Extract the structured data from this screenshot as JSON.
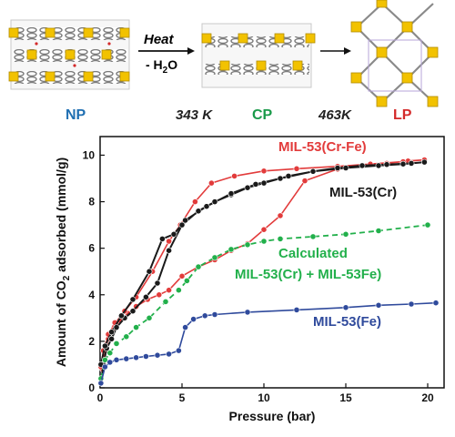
{
  "scheme": {
    "step1": {
      "top": "Heat",
      "bottom": "- H",
      "bottom_sub": "2",
      "bottom_tail": "O"
    },
    "phases": [
      {
        "label": "NP",
        "color": "#1f6fb2"
      },
      {
        "label": "343 K",
        "color": "#222222"
      },
      {
        "label": "CP",
        "color": "#1a9a4a"
      },
      {
        "label": "463K",
        "color": "#222222"
      },
      {
        "label": "LP",
        "color": "#d42a2a"
      }
    ]
  },
  "chart_data": {
    "type": "line",
    "title": "",
    "xlabel": "Pressure (bar)",
    "ylabel_parts": {
      "pre": "Amount of CO",
      "sub": "2",
      "post": " adsorbed (mmol/g)"
    },
    "xlim": [
      0,
      21
    ],
    "ylim": [
      0,
      10.8
    ],
    "xticks": [
      0,
      5,
      10,
      15,
      20
    ],
    "yticks": [
      0,
      2,
      4,
      6,
      8,
      10
    ],
    "grid": false,
    "legend": "inline labels",
    "series": [
      {
        "name": "MIL-53(Cr-Fe)",
        "color": "#e23b3b",
        "dashed": false,
        "line_width": 1.6,
        "points": [
          [
            0.05,
            0.2
          ],
          [
            0.15,
            0.8
          ],
          [
            0.3,
            1.6
          ],
          [
            0.5,
            2.1
          ],
          [
            0.8,
            2.5
          ],
          [
            1.2,
            2.9
          ],
          [
            1.7,
            3.2
          ],
          [
            2.2,
            3.5
          ],
          [
            2.9,
            3.8
          ],
          [
            3.6,
            4.0
          ],
          [
            4.2,
            4.2
          ],
          [
            5.0,
            4.8
          ],
          [
            6.0,
            5.2
          ],
          [
            7.0,
            5.5
          ],
          [
            8.0,
            5.9
          ],
          [
            9.0,
            6.2
          ],
          [
            10.0,
            6.8
          ],
          [
            11.0,
            7.4
          ],
          [
            12.5,
            8.9
          ],
          [
            14.5,
            9.4
          ],
          [
            16.0,
            9.55
          ],
          [
            17.5,
            9.65
          ],
          [
            18.8,
            9.75
          ],
          [
            19.8,
            9.8
          ],
          [
            18.5,
            9.72
          ],
          [
            16.5,
            9.62
          ],
          [
            14.5,
            9.52
          ],
          [
            12.0,
            9.42
          ],
          [
            10.0,
            9.32
          ],
          [
            8.2,
            9.1
          ],
          [
            6.8,
            8.8
          ],
          [
            5.8,
            8.0
          ],
          [
            4.9,
            7.0
          ],
          [
            4.2,
            6.3
          ],
          [
            3.2,
            5.0
          ],
          [
            2.2,
            3.9
          ],
          [
            1.5,
            3.3
          ],
          [
            0.9,
            2.8
          ],
          [
            0.5,
            2.3
          ],
          [
            0.2,
            1.6
          ],
          [
            0.05,
            0.9
          ]
        ]
      },
      {
        "name": "MIL-53(Cr)",
        "color": "#1a1a1a",
        "dashed": false,
        "line_width": 2.0,
        "points": [
          [
            0.05,
            0.2
          ],
          [
            0.2,
            1.0
          ],
          [
            0.4,
            1.7
          ],
          [
            0.7,
            2.1
          ],
          [
            1.0,
            2.6
          ],
          [
            1.5,
            3.0
          ],
          [
            2.0,
            3.3
          ],
          [
            2.8,
            3.9
          ],
          [
            3.5,
            4.5
          ],
          [
            4.2,
            5.9
          ],
          [
            5.0,
            7.0
          ],
          [
            6.0,
            7.6
          ],
          [
            7.0,
            8.0
          ],
          [
            8.0,
            8.3
          ],
          [
            9.0,
            8.6
          ],
          [
            10.0,
            8.8
          ],
          [
            11.5,
            9.1
          ],
          [
            13.0,
            9.3
          ],
          [
            14.5,
            9.45
          ],
          [
            16.0,
            9.55
          ],
          [
            17.5,
            9.6
          ],
          [
            19.0,
            9.65
          ],
          [
            19.8,
            9.7
          ],
          [
            18.5,
            9.62
          ],
          [
            17.0,
            9.55
          ],
          [
            15.0,
            9.45
          ],
          [
            13.0,
            9.3
          ],
          [
            11.0,
            9.0
          ],
          [
            9.5,
            8.75
          ],
          [
            8.0,
            8.35
          ],
          [
            6.5,
            7.8
          ],
          [
            5.2,
            7.2
          ],
          [
            4.5,
            6.6
          ],
          [
            3.8,
            6.4
          ],
          [
            3.0,
            5.0
          ],
          [
            2.0,
            3.8
          ],
          [
            1.3,
            3.1
          ],
          [
            0.7,
            2.4
          ],
          [
            0.3,
            1.8
          ],
          [
            0.05,
            1.0
          ]
        ]
      },
      {
        "name": "Calculated",
        "name2": "MIL-53(Cr) + MIL-53Fe)",
        "color": "#22b04b",
        "dashed": true,
        "line_width": 1.8,
        "points": [
          [
            0.05,
            0.4
          ],
          [
            0.3,
            1.2
          ],
          [
            0.6,
            1.5
          ],
          [
            1.0,
            1.9
          ],
          [
            1.6,
            2.2
          ],
          [
            2.2,
            2.6
          ],
          [
            3.0,
            3.0
          ],
          [
            4.0,
            3.7
          ],
          [
            4.8,
            4.2
          ],
          [
            5.3,
            4.6
          ],
          [
            6.0,
            5.2
          ],
          [
            7.0,
            5.6
          ],
          [
            8.0,
            5.95
          ],
          [
            9.0,
            6.15
          ],
          [
            10.0,
            6.3
          ],
          [
            11.0,
            6.4
          ],
          [
            13.0,
            6.5
          ],
          [
            15.0,
            6.6
          ],
          [
            17.0,
            6.75
          ],
          [
            20.0,
            7.0
          ]
        ]
      },
      {
        "name": "MIL-53(Fe)",
        "color": "#2f4a9c",
        "dashed": false,
        "line_width": 1.6,
        "points": [
          [
            0.05,
            0.2
          ],
          [
            0.3,
            0.9
          ],
          [
            0.6,
            1.1
          ],
          [
            1.0,
            1.2
          ],
          [
            1.6,
            1.25
          ],
          [
            2.2,
            1.3
          ],
          [
            2.8,
            1.35
          ],
          [
            3.5,
            1.4
          ],
          [
            4.2,
            1.45
          ],
          [
            4.8,
            1.6
          ],
          [
            5.2,
            2.6
          ],
          [
            5.7,
            2.95
          ],
          [
            6.4,
            3.1
          ],
          [
            7.0,
            3.15
          ],
          [
            9.0,
            3.25
          ],
          [
            12.0,
            3.35
          ],
          [
            15.0,
            3.45
          ],
          [
            17.0,
            3.55
          ],
          [
            19.0,
            3.6
          ],
          [
            20.5,
            3.65
          ]
        ]
      }
    ]
  }
}
